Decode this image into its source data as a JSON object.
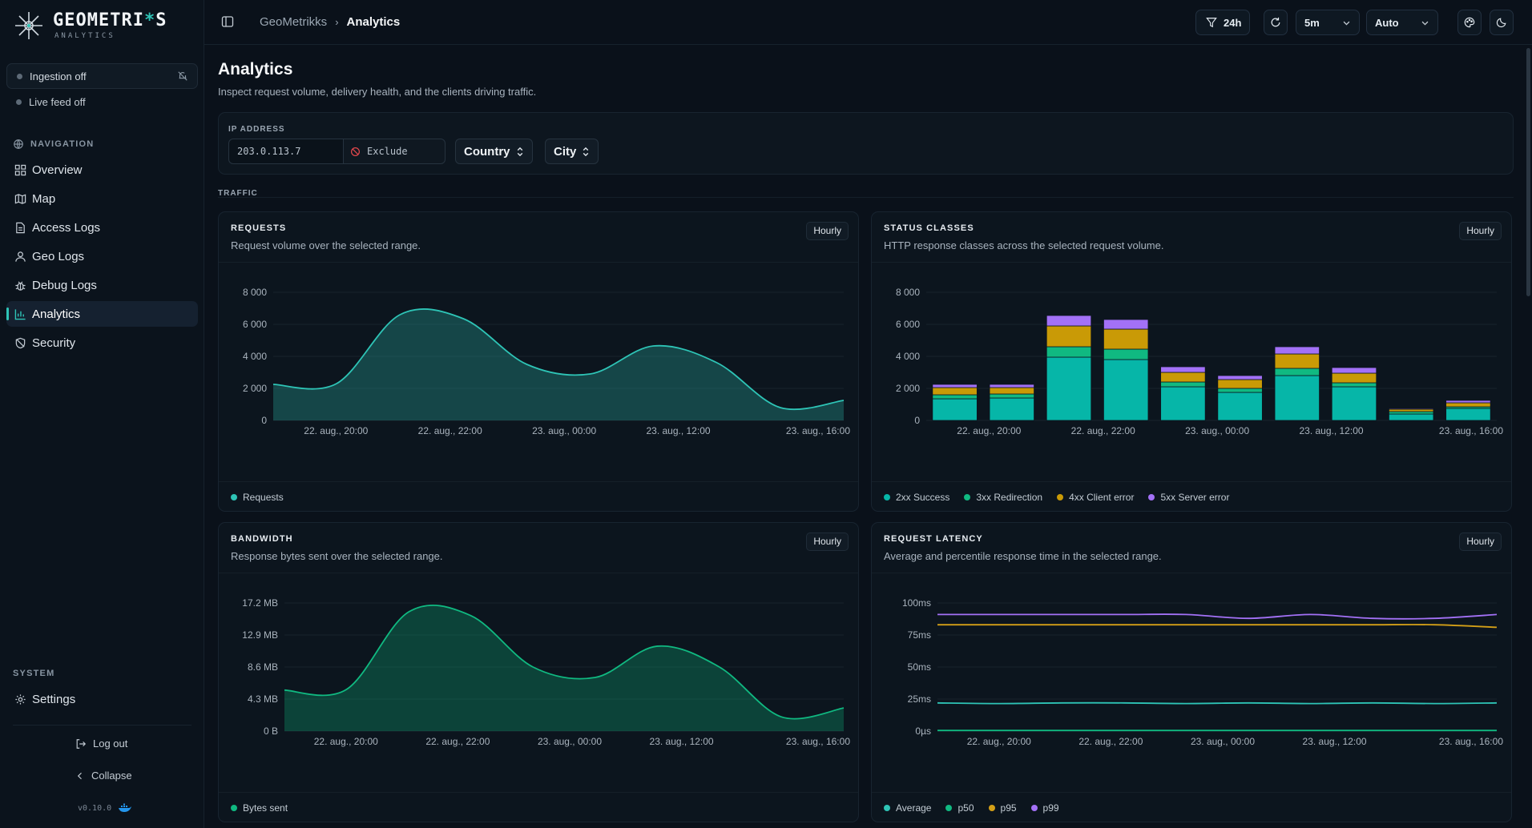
{
  "brand": {
    "name_pre": "GEOMETRI",
    "name_ast": "*",
    "name_post": "S",
    "subtitle": "ANALYTICS"
  },
  "sidebar": {
    "ingestion": "Ingestion off",
    "live_feed": "Live feed off",
    "nav_label": "NAVIGATION",
    "items": [
      {
        "label": "Overview",
        "icon": "grid-icon"
      },
      {
        "label": "Map",
        "icon": "map-icon"
      },
      {
        "label": "Access Logs",
        "icon": "file-icon"
      },
      {
        "label": "Geo Logs",
        "icon": "user-pin-icon"
      },
      {
        "label": "Debug Logs",
        "icon": "bug-icon"
      },
      {
        "label": "Analytics",
        "icon": "bar-chart-icon",
        "active": true
      },
      {
        "label": "Security",
        "icon": "shield-icon"
      }
    ],
    "system_label": "SYSTEM",
    "settings": "Settings",
    "logout": "Log out",
    "collapse": "Collapse",
    "version": "v0.10.0"
  },
  "topbar": {
    "breadcrumb_root": "GeoMetrikks",
    "breadcrumb_current": "Analytics",
    "range": "24h",
    "refresh_interval": "5m",
    "mode": "Auto"
  },
  "page": {
    "title": "Analytics",
    "subtitle": "Inspect request volume, delivery health, and the clients driving traffic."
  },
  "filters": {
    "ip_label": "IP ADDRESS",
    "ip_value": "203.0.113.7",
    "exclude_label": "Exclude",
    "country": "Country",
    "city": "City"
  },
  "section_label": "TRAFFIC",
  "colors": {
    "teal": "#2ec4b6",
    "green": "#10b981",
    "amber": "#d4a017",
    "purple": "#a371f7",
    "accent": "#2ec4b6"
  },
  "chart_data": [
    {
      "id": "requests",
      "type": "area",
      "title": "REQUESTS",
      "subtitle": "Request volume over the selected range.",
      "granularity": "Hourly",
      "x_ticks": [
        "22. aug., 20:00",
        "22. aug., 22:00",
        "23. aug., 00:00",
        "23. aug., 12:00",
        "23. aug., 16:00"
      ],
      "y_ticks": [
        "0",
        "2 000",
        "4 000",
        "6 000",
        "8 000"
      ],
      "ylim": [
        0,
        8000
      ],
      "series": [
        {
          "name": "Requests",
          "color": "#2ec4b6",
          "values": [
            2250,
            2300,
            6600,
            6350,
            3500,
            2900,
            4650,
            3600,
            800,
            1250
          ]
        }
      ]
    },
    {
      "id": "status",
      "type": "bar",
      "title": "STATUS CLASSES",
      "subtitle": "HTTP response classes across the selected request volume.",
      "granularity": "Hourly",
      "x_ticks": [
        "22. aug., 20:00",
        "22. aug., 22:00",
        "23. aug., 00:00",
        "23. aug., 12:00",
        "23. aug., 16:00"
      ],
      "y_ticks": [
        "0",
        "2 000",
        "4 000",
        "6 000",
        "8 000"
      ],
      "ylim": [
        0,
        8000
      ],
      "series": [
        {
          "name": "2xx Success",
          "color": "#06b6a8",
          "values": [
            1350,
            1400,
            3950,
            3800,
            2100,
            1750,
            2800,
            2100,
            400,
            750
          ]
        },
        {
          "name": "3xx Redirection",
          "color": "#10b981",
          "values": [
            250,
            250,
            650,
            650,
            300,
            250,
            450,
            250,
            150,
            100
          ]
        },
        {
          "name": "4xx Client error",
          "color": "#c99a06",
          "values": [
            450,
            400,
            1300,
            1250,
            600,
            550,
            900,
            600,
            150,
            250
          ]
        },
        {
          "name": "5xx Server error",
          "color": "#a371f7",
          "values": [
            200,
            200,
            650,
            600,
            350,
            250,
            450,
            350,
            50,
            150
          ]
        }
      ]
    },
    {
      "id": "bandwidth",
      "type": "area",
      "title": "BANDWIDTH",
      "subtitle": "Response bytes sent over the selected range.",
      "granularity": "Hourly",
      "x_ticks": [
        "22. aug., 20:00",
        "22. aug., 22:00",
        "23. aug., 00:00",
        "23. aug., 12:00",
        "23. aug., 16:00"
      ],
      "y_ticks": [
        "0 B",
        "4.3 MB",
        "8.6 MB",
        "12.9 MB",
        "17.2 MB"
      ],
      "ylim": [
        0,
        17.2
      ],
      "series": [
        {
          "name": "Bytes sent",
          "color": "#10b981",
          "values": [
            5.5,
            5.6,
            16.0,
            15.5,
            8.6,
            7.2,
            11.4,
            8.6,
            1.9,
            3.1
          ]
        }
      ]
    },
    {
      "id": "latency",
      "type": "line",
      "title": "REQUEST LATENCY",
      "subtitle": "Average and percentile response time in the selected range.",
      "granularity": "Hourly",
      "x_ticks": [
        "22. aug., 20:00",
        "22. aug., 22:00",
        "23. aug., 00:00",
        "23. aug., 12:00",
        "23. aug., 16:00"
      ],
      "y_ticks": [
        "0µs",
        "25ms",
        "50ms",
        "75ms",
        "100ms"
      ],
      "ylim": [
        0,
        100
      ],
      "series": [
        {
          "name": "Average",
          "color": "#2ec4b6",
          "values": [
            22,
            21.5,
            22,
            22,
            21.5,
            22,
            21.5,
            22,
            21.5,
            22
          ]
        },
        {
          "name": "p50",
          "color": "#10b981",
          "values": [
            0.5,
            0.5,
            0.5,
            0.5,
            0.5,
            0.5,
            0.5,
            0.5,
            0.5,
            0.5
          ]
        },
        {
          "name": "p95",
          "color": "#d4a017",
          "values": [
            83,
            83,
            83,
            83,
            83,
            83,
            83,
            83,
            83,
            81
          ]
        },
        {
          "name": "p99",
          "color": "#a371f7",
          "values": [
            91,
            91,
            91,
            91,
            91,
            88,
            91,
            88,
            88,
            91
          ]
        }
      ]
    }
  ]
}
